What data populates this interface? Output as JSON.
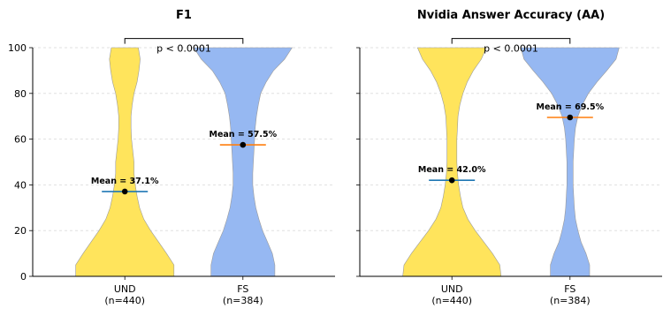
{
  "chart_data": [
    {
      "type": "violin",
      "title": "F1",
      "ylim": [
        0,
        100
      ],
      "yticks": [
        0,
        20,
        40,
        60,
        80,
        100
      ],
      "grid": "y-dashed",
      "categories": [
        "UND\n(n=440)",
        "FS\n(n=384)"
      ],
      "groups": [
        {
          "name": "UND",
          "n": 440,
          "color": "#FFE45C",
          "mean_color": "#1F77B4",
          "mean": 37.1,
          "mean_label": "Mean = 37.1%",
          "density_halfwidth": [
            [
              0,
              0.8
            ],
            [
              5,
              0.8
            ],
            [
              10,
              0.68
            ],
            [
              15,
              0.55
            ],
            [
              20,
              0.42
            ],
            [
              25,
              0.31
            ],
            [
              30,
              0.24
            ],
            [
              35,
              0.2
            ],
            [
              40,
              0.17
            ],
            [
              45,
              0.15
            ],
            [
              50,
              0.15
            ],
            [
              55,
              0.13
            ],
            [
              60,
              0.11
            ],
            [
              65,
              0.1
            ],
            [
              70,
              0.1
            ],
            [
              75,
              0.12
            ],
            [
              80,
              0.15
            ],
            [
              85,
              0.2
            ],
            [
              90,
              0.23
            ],
            [
              95,
              0.25
            ],
            [
              100,
              0.22
            ]
          ]
        },
        {
          "name": "FS",
          "n": 384,
          "color": "#96B8F2",
          "mean_color": "#FF7F0E",
          "mean": 57.5,
          "mean_label": "Mean = 57.5%",
          "density_halfwidth": [
            [
              0,
              0.52
            ],
            [
              5,
              0.52
            ],
            [
              10,
              0.48
            ],
            [
              15,
              0.4
            ],
            [
              20,
              0.32
            ],
            [
              25,
              0.26
            ],
            [
              30,
              0.21
            ],
            [
              35,
              0.18
            ],
            [
              40,
              0.16
            ],
            [
              45,
              0.16
            ],
            [
              50,
              0.17
            ],
            [
              55,
              0.18
            ],
            [
              60,
              0.19
            ],
            [
              65,
              0.2
            ],
            [
              70,
              0.22
            ],
            [
              75,
              0.25
            ],
            [
              80,
              0.29
            ],
            [
              85,
              0.38
            ],
            [
              90,
              0.5
            ],
            [
              95,
              0.68
            ],
            [
              100,
              0.8
            ]
          ]
        }
      ],
      "annotation": {
        "text": "p < 0.0001",
        "level": 104
      }
    },
    {
      "type": "violin",
      "title": "Nvidia Answer Accuracy (AA)",
      "ylim": [
        0,
        100
      ],
      "yticks": [
        0,
        20,
        40,
        60,
        80,
        100
      ],
      "grid": "y-dashed",
      "categories": [
        "UND\n(n=440)",
        "FS\n(n=384)"
      ],
      "groups": [
        {
          "name": "UND",
          "n": 440,
          "color": "#FFE45C",
          "mean_color": "#1F77B4",
          "mean": 42.0,
          "mean_label": "Mean = 42.0%",
          "density_halfwidth": [
            [
              0,
              0.8
            ],
            [
              5,
              0.78
            ],
            [
              10,
              0.66
            ],
            [
              15,
              0.52
            ],
            [
              20,
              0.38
            ],
            [
              25,
              0.26
            ],
            [
              30,
              0.18
            ],
            [
              35,
              0.14
            ],
            [
              40,
              0.11
            ],
            [
              45,
              0.09
            ],
            [
              50,
              0.08
            ],
            [
              55,
              0.08
            ],
            [
              60,
              0.08
            ],
            [
              65,
              0.09
            ],
            [
              70,
              0.1
            ],
            [
              75,
              0.13
            ],
            [
              80,
              0.18
            ],
            [
              85,
              0.25
            ],
            [
              90,
              0.35
            ],
            [
              95,
              0.48
            ],
            [
              100,
              0.56
            ]
          ]
        },
        {
          "name": "FS",
          "n": 384,
          "color": "#96B8F2",
          "mean_color": "#FF7F0E",
          "mean": 69.5,
          "mean_label": "Mean = 69.5%",
          "density_halfwidth": [
            [
              0,
              0.32
            ],
            [
              5,
              0.32
            ],
            [
              10,
              0.26
            ],
            [
              15,
              0.18
            ],
            [
              20,
              0.13
            ],
            [
              25,
              0.09
            ],
            [
              30,
              0.07
            ],
            [
              35,
              0.06
            ],
            [
              40,
              0.05
            ],
            [
              45,
              0.05
            ],
            [
              50,
              0.05
            ],
            [
              55,
              0.06
            ],
            [
              60,
              0.07
            ],
            [
              65,
              0.09
            ],
            [
              70,
              0.13
            ],
            [
              75,
              0.2
            ],
            [
              80,
              0.3
            ],
            [
              85,
              0.44
            ],
            [
              90,
              0.6
            ],
            [
              95,
              0.75
            ],
            [
              100,
              0.8
            ]
          ]
        }
      ],
      "annotation": {
        "text": "p < 0.0001",
        "level": 104
      }
    }
  ]
}
